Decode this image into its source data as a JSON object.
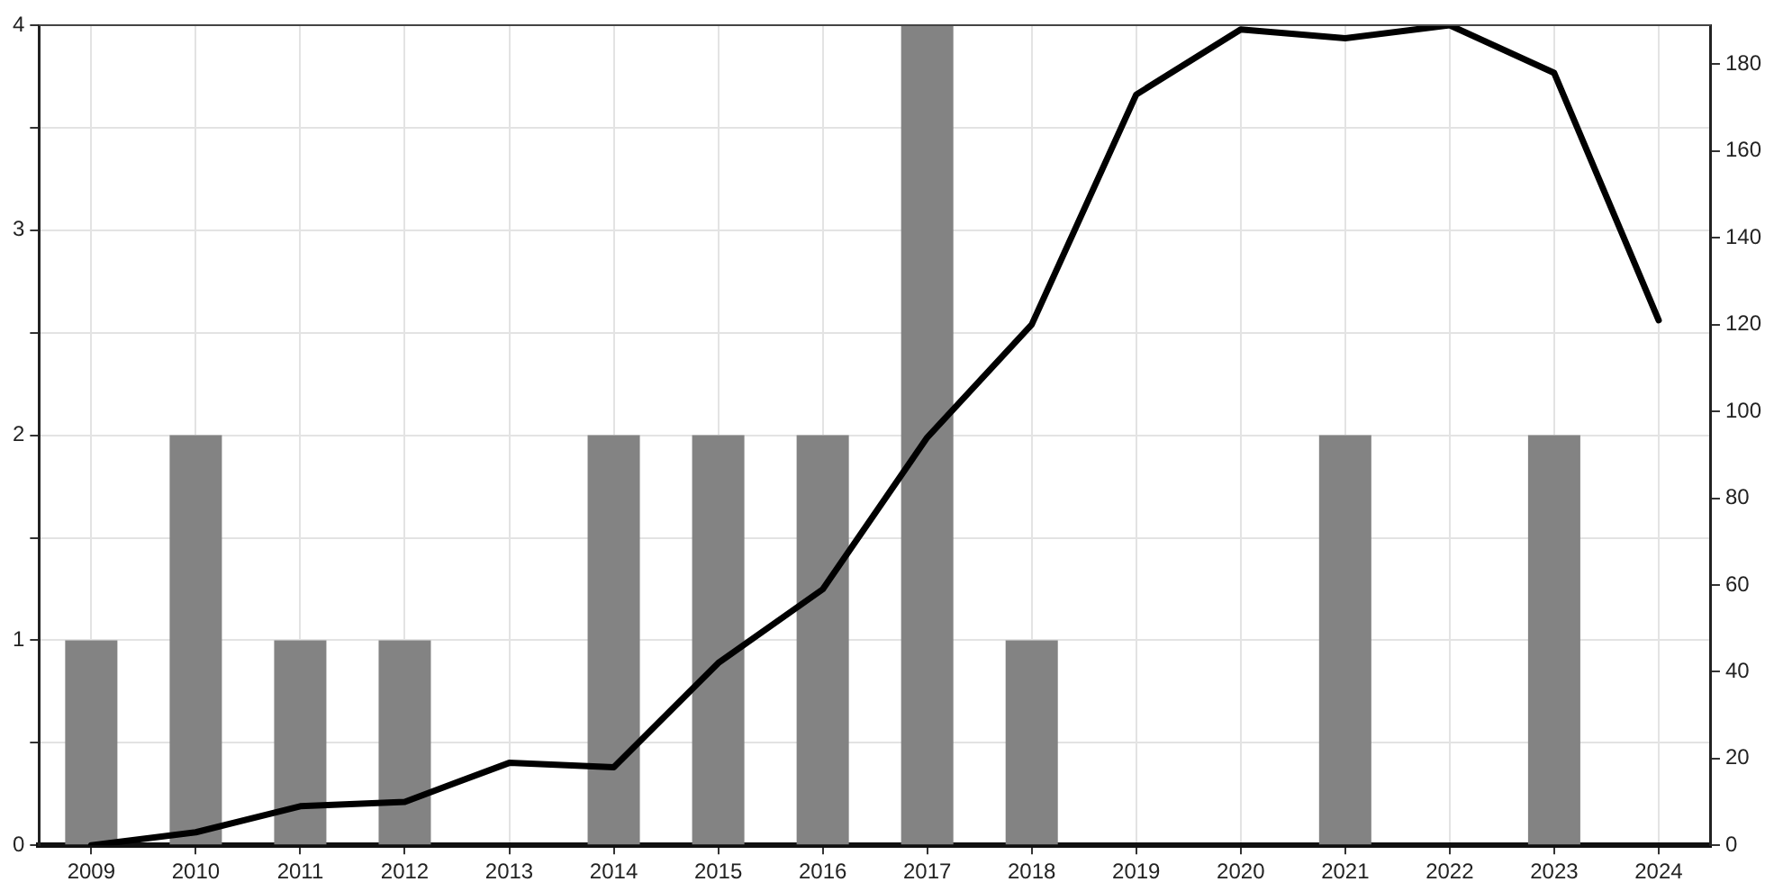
{
  "chart_data": {
    "type": "bar",
    "categories": [
      "2009",
      "2010",
      "2011",
      "2012",
      "2013",
      "2014",
      "2015",
      "2016",
      "2017",
      "2018",
      "2019",
      "2020",
      "2021",
      "2022",
      "2023",
      "2024"
    ],
    "series": [
      {
        "color": "#838383",
        "values": [
          1,
          2,
          1,
          1,
          0,
          2,
          2,
          2,
          4,
          1,
          0,
          0,
          2,
          0,
          2,
          0
        ]
      },
      {
        "type": "line",
        "axis": "y2",
        "color": "#000000",
        "values": [
          0,
          3,
          9,
          10,
          19,
          18,
          42,
          59,
          94,
          120,
          173,
          188,
          186,
          189,
          178,
          121
        ]
      }
    ],
    "ylim": [
      0,
      4
    ],
    "yticks": [
      0,
      {
        "value": 0.5,
        "label": null
      },
      1,
      {
        "value": 1.5,
        "label": null
      },
      2,
      {
        "value": 2.5,
        "label": null
      },
      3,
      {
        "value": 3.5,
        "label": null
      },
      4
    ],
    "y2lim": [
      0,
      189
    ],
    "y2ticks": [
      0,
      20,
      40,
      60,
      80,
      100,
      120,
      140,
      160,
      180
    ],
    "grid": true,
    "legend": false,
    "marker": "none",
    "line_style": "solid"
  }
}
